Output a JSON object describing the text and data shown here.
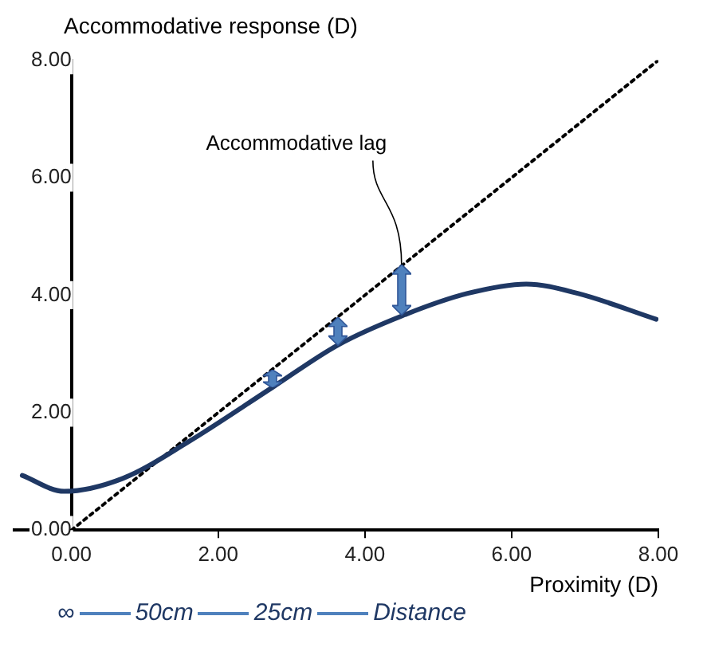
{
  "chart_data": {
    "type": "line",
    "xlabel": "Proximity (D)",
    "ylabel": "Accommodative response (D)",
    "xlim": [
      -0.8,
      8
    ],
    "ylim": [
      0,
      8
    ],
    "xticks": [
      {
        "value": 0,
        "label": "0.00"
      },
      {
        "value": 2,
        "label": "2.00"
      },
      {
        "value": 4,
        "label": "4.00"
      },
      {
        "value": 6,
        "label": "6.00"
      },
      {
        "value": 8,
        "label": "8.00"
      }
    ],
    "yticks": [
      {
        "value": 0,
        "label": "0.00"
      },
      {
        "value": 2,
        "label": "2.00"
      },
      {
        "value": 4,
        "label": "4.00"
      },
      {
        "value": 6,
        "label": "6.00"
      },
      {
        "value": 8,
        "label": "8.00"
      }
    ],
    "grid": false,
    "legend": false,
    "marker": "none",
    "series": [
      {
        "color": "#1f3864",
        "line_style": "solid",
        "x": [
          -0.67,
          -0.1,
          0.7,
          1.59,
          2.74,
          3.63,
          4.51,
          5.4,
          6.2,
          6.9,
          7.97
        ],
        "values": [
          0.93,
          0.66,
          0.88,
          1.5,
          2.43,
          3.15,
          3.65,
          4.03,
          4.19,
          4.03,
          3.59
        ]
      },
      {
        "color": "#000000",
        "line_style": "dotted",
        "x": [
          0,
          8
        ],
        "values": [
          0,
          8
        ]
      }
    ],
    "annotations": [
      {
        "text": "Accommodative lag",
        "x": 4.5,
        "y": 4.5
      },
      "∞",
      "50cm",
      "25cm",
      "Distance"
    ]
  }
}
